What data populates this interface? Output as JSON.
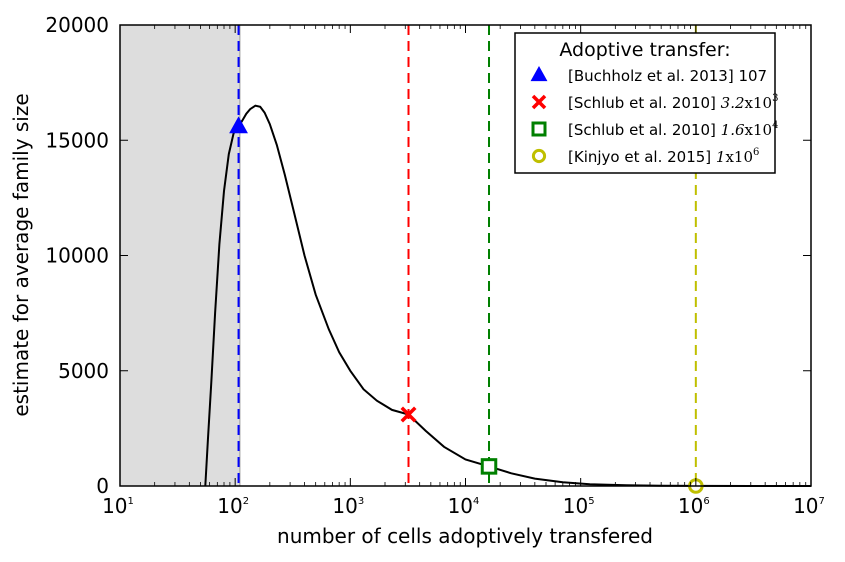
{
  "chart_data": {
    "type": "line",
    "xlabel": "number of cells adoptively transfered",
    "ylabel": "estimate for average family size",
    "xscale": "log",
    "xlim": [
      10,
      10000000
    ],
    "ylim": [
      0,
      20000
    ],
    "x_ticks": [
      {
        "value": 10,
        "base": "10",
        "exp": "1"
      },
      {
        "value": 100,
        "base": "10",
        "exp": "2"
      },
      {
        "value": 1000,
        "base": "10",
        "exp": "3"
      },
      {
        "value": 10000,
        "base": "10",
        "exp": "4"
      },
      {
        "value": 100000,
        "base": "10",
        "exp": "5"
      },
      {
        "value": 1000000,
        "base": "10",
        "exp": "6"
      },
      {
        "value": 10000000,
        "base": "10",
        "exp": "7"
      }
    ],
    "y_ticks": [
      {
        "value": 0,
        "label": "0"
      },
      {
        "value": 5000,
        "label": "5000"
      },
      {
        "value": 10000,
        "label": "10000"
      },
      {
        "value": 15000,
        "label": "15000"
      },
      {
        "value": 20000,
        "label": "20000"
      }
    ],
    "shaded_region": {
      "x_from": 10,
      "x_to": 110,
      "color": "#dddddd"
    },
    "grid": false,
    "curve": {
      "color": "#000000",
      "points": [
        [
          55,
          0
        ],
        [
          58,
          2000
        ],
        [
          62,
          4500
        ],
        [
          67,
          7500
        ],
        [
          73,
          10500
        ],
        [
          80,
          12800
        ],
        [
          88,
          14400
        ],
        [
          97,
          15300
        ],
        [
          107,
          15600
        ],
        [
          115,
          15850
        ],
        [
          125,
          16150
        ],
        [
          135,
          16350
        ],
        [
          150,
          16500
        ],
        [
          165,
          16450
        ],
        [
          180,
          16200
        ],
        [
          200,
          15700
        ],
        [
          230,
          14800
        ],
        [
          270,
          13500
        ],
        [
          320,
          12000
        ],
        [
          400,
          10000
        ],
        [
          500,
          8300
        ],
        [
          650,
          6800
        ],
        [
          800,
          5800
        ],
        [
          1000,
          5000
        ],
        [
          1300,
          4200
        ],
        [
          1700,
          3700
        ],
        [
          2300,
          3300
        ],
        [
          3200,
          3100
        ],
        [
          4500,
          2400
        ],
        [
          6500,
          1700
        ],
        [
          10000,
          1150
        ],
        [
          16000,
          850
        ],
        [
          25000,
          550
        ],
        [
          40000,
          320
        ],
        [
          70000,
          160
        ],
        [
          120000,
          75
        ],
        [
          250000,
          30
        ],
        [
          500000,
          12
        ],
        [
          1000000,
          5
        ],
        [
          3000000,
          1
        ],
        [
          10000000,
          0
        ]
      ]
    },
    "legend": {
      "title": "Adoptive transfer:",
      "position": "top-right",
      "entries": [
        {
          "label": "[Buchholz et al. 2013] 107",
          "label_parts": {
            "text": "[Buchholz et al. 2013] 107",
            "mant": "",
            "exp": ""
          },
          "marker": "triangle",
          "color": "#0000ff"
        },
        {
          "label": "[Schlub et al. 2010] 3.2x10^3",
          "label_parts": {
            "text": "[Schlub et al. 2010]",
            "mant": "3.2",
            "exp": "3"
          },
          "marker": "x",
          "color": "#ff0000"
        },
        {
          "label": "[Schlub et al. 2010] 1.6x10^4",
          "label_parts": {
            "text": "[Schlub et al. 2010]",
            "mant": "1.6",
            "exp": "4"
          },
          "marker": "square",
          "color": "#008000"
        },
        {
          "label": "[Kinjyo et al. 2015] 1x10^6",
          "label_parts": {
            "text": "[Kinjyo et al. 2015]",
            "mant": "1",
            "exp": "6"
          },
          "marker": "circle",
          "color": "#bfbf00"
        }
      ]
    },
    "markers": [
      {
        "x": 107,
        "y": 15600,
        "marker": "triangle",
        "color": "#0000ff"
      },
      {
        "x": 3200,
        "y": 3100,
        "marker": "x",
        "color": "#ff0000"
      },
      {
        "x": 16000,
        "y": 850,
        "marker": "square",
        "color": "#008000"
      },
      {
        "x": 1000000,
        "y": 0,
        "marker": "circle",
        "color": "#bfbf00"
      }
    ],
    "vlines": [
      {
        "x": 107,
        "color": "#0000ff"
      },
      {
        "x": 3200,
        "color": "#ff0000"
      },
      {
        "x": 16000,
        "color": "#008000"
      },
      {
        "x": 1000000,
        "color": "#bfbf00"
      }
    ]
  }
}
